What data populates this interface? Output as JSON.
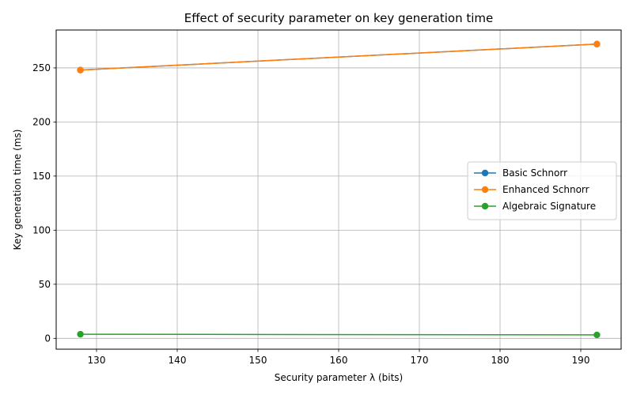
{
  "chart_data": {
    "type": "line",
    "title": "Effect of security parameter on key generation time",
    "xlabel": "Security parameter λ (bits)",
    "ylabel": "Key generation time (ms)",
    "xlim": [
      125,
      195
    ],
    "ylim": [
      -10,
      285
    ],
    "xticks": [
      130,
      140,
      150,
      160,
      170,
      180,
      190
    ],
    "yticks": [
      0,
      50,
      100,
      150,
      200,
      250
    ],
    "grid": true,
    "legend_position": "center-right",
    "x": [
      128,
      192
    ],
    "series": [
      {
        "name": "Basic Schnorr",
        "color": "#1f77b4",
        "values": [
          248,
          272
        ]
      },
      {
        "name": "Enhanced Schnorr",
        "color": "#ff7f0e",
        "values": [
          248,
          272
        ]
      },
      {
        "name": "Algebraic Signature",
        "color": "#2ca02c",
        "values": [
          3.8,
          3.2
        ]
      }
    ]
  }
}
